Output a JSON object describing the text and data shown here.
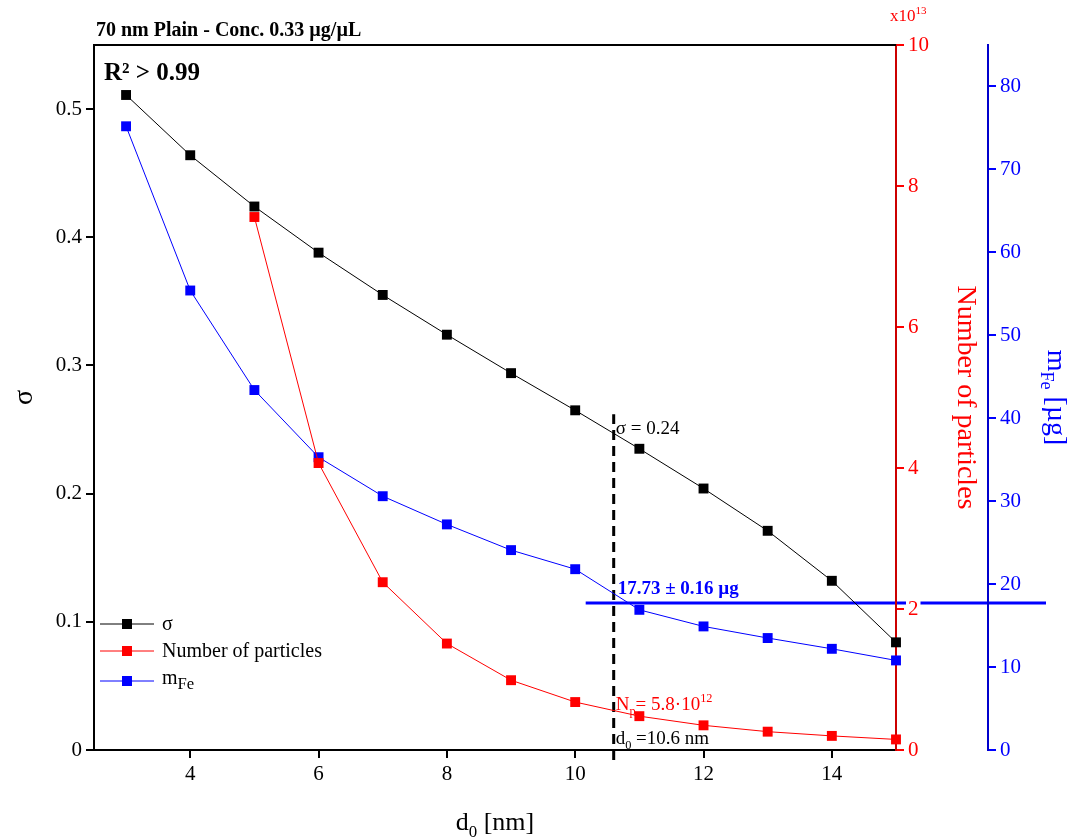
{
  "chart_data": {
    "type": "line",
    "title": "70 nm Plain - Conc. 0.33 µg/µL",
    "xlabel": "d$_{0}$ [nm]",
    "ylabel": "σ",
    "y2label": "Number of particles",
    "y3label": "m$_{Fe}$ [µg]",
    "x": [
      3,
      4,
      5,
      6,
      7,
      8,
      9,
      10,
      11,
      12,
      13,
      14,
      15
    ],
    "series": [
      {
        "name": "σ",
        "color": "#000000",
        "values": [
          0.511,
          0.464,
          0.424,
          0.388,
          0.355,
          0.324,
          0.294,
          0.265,
          0.235,
          0.204,
          0.171,
          0.132,
          0.084
        ]
      },
      {
        "name": "Number of particles",
        "color": "#ff0000",
        "axis": "y2",
        "values": [
          null,
          null,
          7.56,
          4.07,
          2.38,
          1.51,
          0.99,
          0.68,
          0.48,
          0.35,
          0.26,
          0.2,
          0.15
        ]
      },
      {
        "name": "m$_{Fe}$",
        "color": "#0000ff",
        "axis": "y3",
        "values": [
          75.2,
          55.4,
          43.4,
          35.3,
          30.6,
          27.2,
          24.1,
          21.8,
          16.9,
          14.9,
          13.5,
          12.2,
          10.8
        ]
      }
    ],
    "xlim": [
      2.5,
      15
    ],
    "xticks": [
      4,
      6,
      8,
      10,
      12,
      14
    ],
    "ylim": [
      0,
      0.55
    ],
    "yticks": [
      0,
      0.1,
      0.2,
      0.3,
      0.4,
      0.5
    ],
    "y2lim": [
      0,
      10
    ],
    "y2ticks": [
      0,
      2,
      4,
      6,
      8,
      10
    ],
    "y3lim": [
      0,
      85
    ],
    "y3ticks": [
      0,
      10,
      20,
      30,
      40,
      50,
      60,
      70,
      80
    ],
    "marker": "square",
    "line_style": "solid",
    "grid": false,
    "legend": "bottom left",
    "ref_lines": [
      {
        "axis": "x",
        "value": 10.6,
        "label": "d$_{0}$ =10.6 nm",
        "color": "#000000",
        "line_style": "dashed"
      },
      {
        "axis": "y3",
        "value": 17.73,
        "label": "17.73 ± 0.16 µg",
        "color": "#0000ff"
      }
    ],
    "annotations": [
      "R² > 0.99",
      "x10$^{13}$",
      "N$_{p}$= 5.8·10$^{12}$",
      {
        "text": "σ = 0.24",
        "x": 10.6,
        "y": 0.24
      }
    ]
  }
}
